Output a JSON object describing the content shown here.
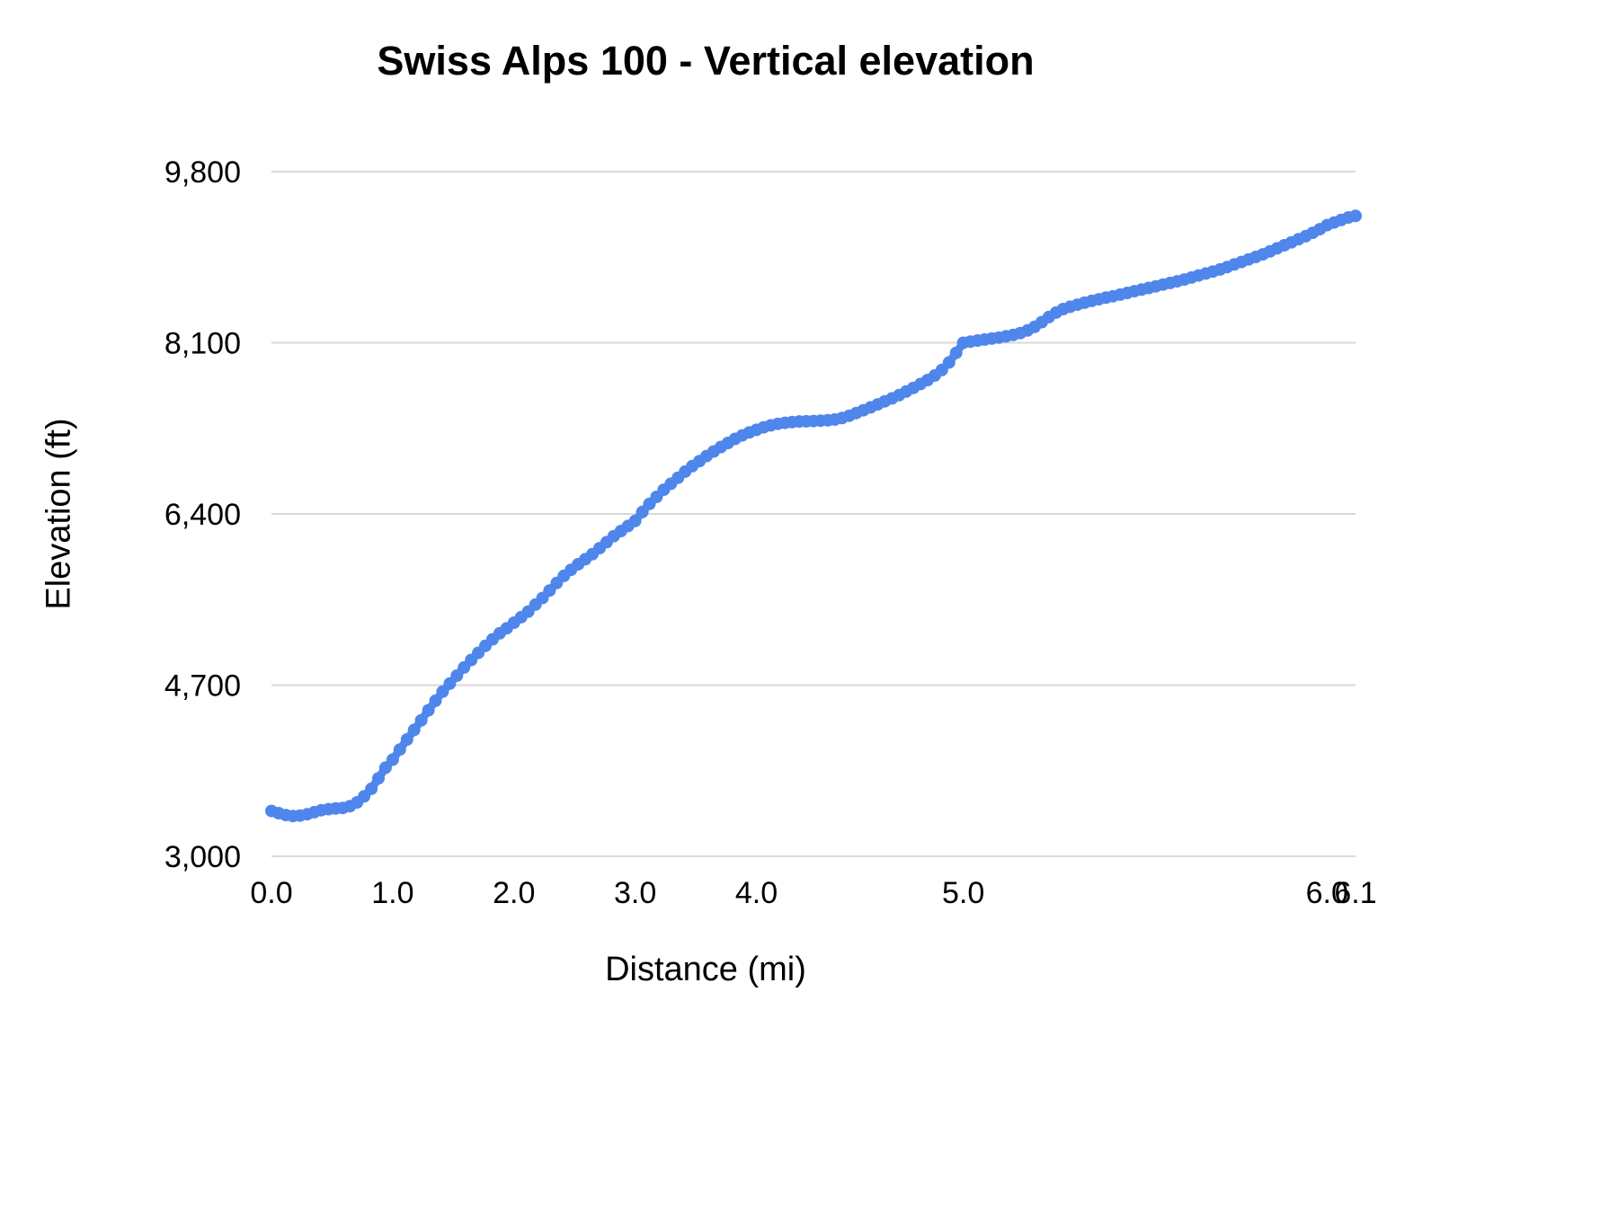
{
  "chart_data": {
    "type": "line",
    "title": "Swiss Alps 100 - Vertical elevation",
    "xlabel": "Distance (mi)",
    "ylabel": "Elevation (ft)",
    "ylim": [
      3000,
      9800
    ],
    "grid": true,
    "legend_position": "none",
    "line_color": "#4f86ec",
    "grid_color": "#d9d9d9",
    "axis_note": "x axis is categorical: points evenly spaced by sample index, tick labels placed at matching sample",
    "y_ticks": [
      {
        "value": 3000,
        "label": "3,000"
      },
      {
        "value": 4700,
        "label": "4,700"
      },
      {
        "value": 6400,
        "label": "6,400"
      },
      {
        "value": 8100,
        "label": "8,100"
      },
      {
        "value": 9800,
        "label": "9,800"
      }
    ],
    "x_ticks": [
      {
        "value": 0.0,
        "label": "0.0"
      },
      {
        "value": 1.0,
        "label": "1.0"
      },
      {
        "value": 2.0,
        "label": "2.0"
      },
      {
        "value": 3.0,
        "label": "3.0"
      },
      {
        "value": 4.0,
        "label": "4.0"
      },
      {
        "value": 5.0,
        "label": "5.0"
      },
      {
        "value": 6.0,
        "label": "6.0"
      },
      {
        "value": 6.1,
        "label": "6.1"
      }
    ],
    "points": [
      [
        0.0,
        3450
      ],
      [
        0.06,
        3428
      ],
      [
        0.12,
        3410
      ],
      [
        0.18,
        3400
      ],
      [
        0.24,
        3404
      ],
      [
        0.29,
        3418
      ],
      [
        0.35,
        3438
      ],
      [
        0.41,
        3458
      ],
      [
        0.47,
        3468
      ],
      [
        0.53,
        3475
      ],
      [
        0.59,
        3480
      ],
      [
        0.65,
        3498
      ],
      [
        0.71,
        3535
      ],
      [
        0.76,
        3595
      ],
      [
        0.82,
        3670
      ],
      [
        0.88,
        3775
      ],
      [
        0.94,
        3880
      ],
      [
        1.0,
        3960
      ],
      [
        1.06,
        4060
      ],
      [
        1.12,
        4160
      ],
      [
        1.18,
        4255
      ],
      [
        1.24,
        4350
      ],
      [
        1.29,
        4450
      ],
      [
        1.35,
        4545
      ],
      [
        1.41,
        4635
      ],
      [
        1.47,
        4715
      ],
      [
        1.53,
        4795
      ],
      [
        1.59,
        4875
      ],
      [
        1.65,
        4950
      ],
      [
        1.71,
        5020
      ],
      [
        1.76,
        5090
      ],
      [
        1.82,
        5155
      ],
      [
        1.88,
        5215
      ],
      [
        1.94,
        5265
      ],
      [
        2.0,
        5320
      ],
      [
        2.06,
        5375
      ],
      [
        2.12,
        5430
      ],
      [
        2.18,
        5500
      ],
      [
        2.24,
        5565
      ],
      [
        2.29,
        5640
      ],
      [
        2.35,
        5715
      ],
      [
        2.41,
        5785
      ],
      [
        2.47,
        5845
      ],
      [
        2.53,
        5900
      ],
      [
        2.59,
        5950
      ],
      [
        2.65,
        6000
      ],
      [
        2.71,
        6060
      ],
      [
        2.76,
        6120
      ],
      [
        2.82,
        6180
      ],
      [
        2.88,
        6230
      ],
      [
        2.94,
        6280
      ],
      [
        3.0,
        6330
      ],
      [
        3.06,
        6420
      ],
      [
        3.12,
        6500
      ],
      [
        3.18,
        6570
      ],
      [
        3.24,
        6640
      ],
      [
        3.29,
        6700
      ],
      [
        3.35,
        6760
      ],
      [
        3.41,
        6820
      ],
      [
        3.47,
        6875
      ],
      [
        3.53,
        6925
      ],
      [
        3.59,
        6975
      ],
      [
        3.65,
        7020
      ],
      [
        3.71,
        7065
      ],
      [
        3.76,
        7105
      ],
      [
        3.82,
        7145
      ],
      [
        3.88,
        7180
      ],
      [
        3.94,
        7210
      ],
      [
        4.0,
        7235
      ],
      [
        4.03,
        7260
      ],
      [
        4.07,
        7280
      ],
      [
        4.1,
        7295
      ],
      [
        4.14,
        7305
      ],
      [
        4.17,
        7312
      ],
      [
        4.21,
        7318
      ],
      [
        4.24,
        7320
      ],
      [
        4.28,
        7323
      ],
      [
        4.31,
        7326
      ],
      [
        4.34,
        7330
      ],
      [
        4.38,
        7338
      ],
      [
        4.41,
        7352
      ],
      [
        4.45,
        7375
      ],
      [
        4.48,
        7402
      ],
      [
        4.52,
        7430
      ],
      [
        4.55,
        7458
      ],
      [
        4.59,
        7488
      ],
      [
        4.62,
        7518
      ],
      [
        4.66,
        7548
      ],
      [
        4.69,
        7580
      ],
      [
        4.72,
        7615
      ],
      [
        4.76,
        7652
      ],
      [
        4.79,
        7690
      ],
      [
        4.83,
        7730
      ],
      [
        4.86,
        7775
      ],
      [
        4.9,
        7830
      ],
      [
        4.93,
        7905
      ],
      [
        4.97,
        8000
      ],
      [
        5.0,
        8100
      ],
      [
        5.02,
        8112
      ],
      [
        5.04,
        8122
      ],
      [
        5.06,
        8132
      ],
      [
        5.08,
        8142
      ],
      [
        5.1,
        8152
      ],
      [
        5.12,
        8164
      ],
      [
        5.14,
        8178
      ],
      [
        5.16,
        8196
      ],
      [
        5.18,
        8222
      ],
      [
        5.2,
        8258
      ],
      [
        5.22,
        8305
      ],
      [
        5.24,
        8355
      ],
      [
        5.26,
        8400
      ],
      [
        5.27,
        8435
      ],
      [
        5.29,
        8458
      ],
      [
        5.31,
        8478
      ],
      [
        5.33,
        8498
      ],
      [
        5.35,
        8516
      ],
      [
        5.37,
        8532
      ],
      [
        5.39,
        8548
      ],
      [
        5.41,
        8562
      ],
      [
        5.43,
        8578
      ],
      [
        5.45,
        8595
      ],
      [
        5.47,
        8612
      ],
      [
        5.49,
        8628
      ],
      [
        5.51,
        8644
      ],
      [
        5.53,
        8660
      ],
      [
        5.55,
        8678
      ],
      [
        5.57,
        8694
      ],
      [
        5.59,
        8710
      ],
      [
        5.61,
        8728
      ],
      [
        5.63,
        8748
      ],
      [
        5.65,
        8768
      ],
      [
        5.67,
        8788
      ],
      [
        5.69,
        8808
      ],
      [
        5.71,
        8828
      ],
      [
        5.73,
        8852
      ],
      [
        5.75,
        8878
      ],
      [
        5.76,
        8902
      ],
      [
        5.78,
        8928
      ],
      [
        5.8,
        8952
      ],
      [
        5.82,
        8978
      ],
      [
        5.84,
        9008
      ],
      [
        5.86,
        9038
      ],
      [
        5.88,
        9068
      ],
      [
        5.9,
        9098
      ],
      [
        5.92,
        9128
      ],
      [
        5.94,
        9158
      ],
      [
        5.96,
        9192
      ],
      [
        5.98,
        9228
      ],
      [
        6.0,
        9268
      ],
      [
        6.02,
        9295
      ],
      [
        6.05,
        9320
      ],
      [
        6.08,
        9345
      ],
      [
        6.1,
        9360
      ]
    ]
  }
}
